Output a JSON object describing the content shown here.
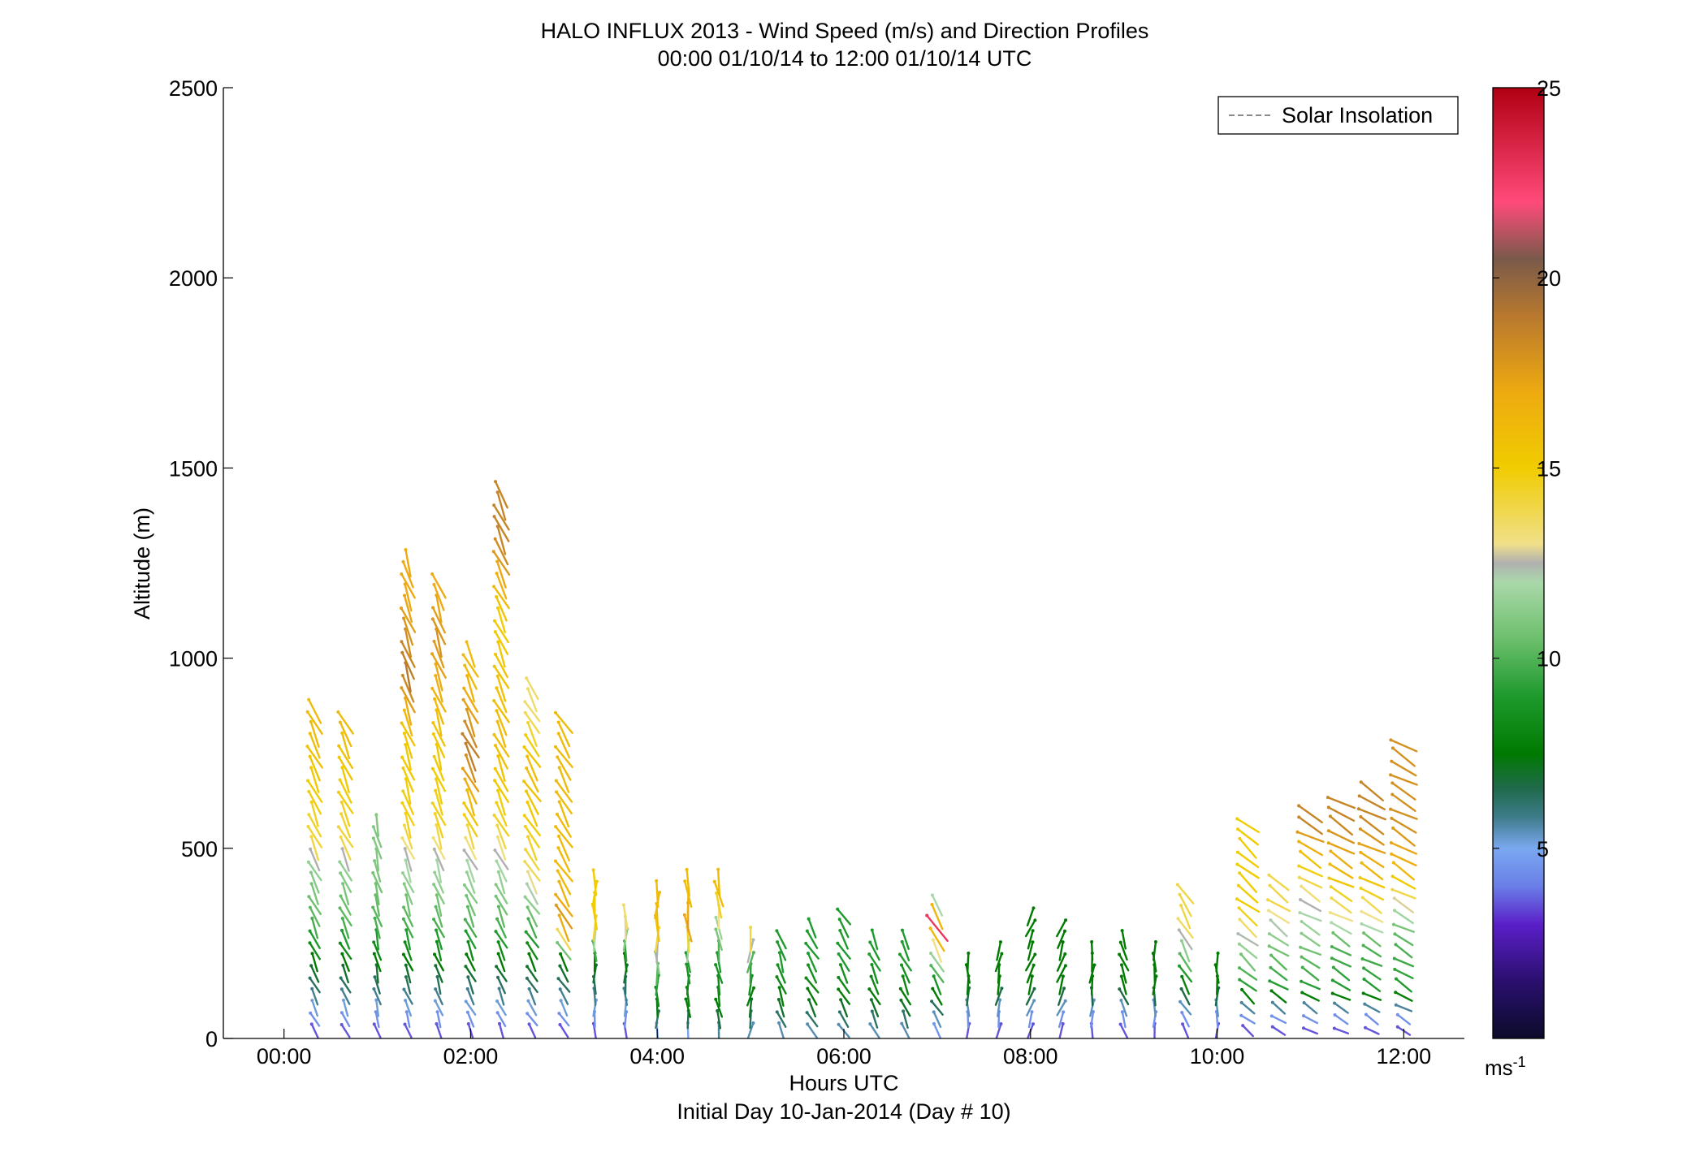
{
  "chart_data": {
    "type": "wind-barb-profile",
    "title": "HALO INFLUX 2013 - Wind Speed (m/s) and Direction Profiles",
    "subtitle": "00:00 01/10/14 to 12:00 01/10/14  UTC",
    "xlabel": "Hours UTC",
    "xlabel2": "Initial Day 10-Jan-2014 (Day # 10)",
    "ylabel": "Altitude (m)",
    "x_range_hours": [
      -0.65,
      12.65
    ],
    "ylim": [
      0,
      2500
    ],
    "x_ticks": [
      {
        "hour": 0,
        "label": "00:00"
      },
      {
        "hour": 2,
        "label": "02:00"
      },
      {
        "hour": 4,
        "label": "04:00"
      },
      {
        "hour": 6,
        "label": "06:00"
      },
      {
        "hour": 8,
        "label": "08:00"
      },
      {
        "hour": 10,
        "label": "10:00"
      },
      {
        "hour": 12,
        "label": "12:00"
      }
    ],
    "y_ticks": [
      0,
      500,
      1000,
      1500,
      2000,
      2500
    ],
    "legend": {
      "position": "top-right",
      "entries": [
        {
          "label": "Solar Insolation",
          "style": "dashed",
          "color": "#8a8a8a"
        }
      ]
    },
    "colorbar": {
      "min": 0,
      "max": 25,
      "ticks": [
        5,
        10,
        15,
        20,
        25
      ],
      "unit": "ms",
      "unit_exp": "-1",
      "stops": [
        {
          "v": 0,
          "c": "#0b0b2a"
        },
        {
          "v": 1.5,
          "c": "#2a0f6e"
        },
        {
          "v": 3,
          "c": "#5a1fc8"
        },
        {
          "v": 4,
          "c": "#6a7ee8"
        },
        {
          "v": 5,
          "c": "#7aa8f0"
        },
        {
          "v": 5.8,
          "c": "#3f7c8c"
        },
        {
          "v": 6.6,
          "c": "#1f6a4a"
        },
        {
          "v": 7.5,
          "c": "#007a00"
        },
        {
          "v": 9,
          "c": "#1e9a2e"
        },
        {
          "v": 10.5,
          "c": "#6cbf6c"
        },
        {
          "v": 12,
          "c": "#aad8aa"
        },
        {
          "v": 12.5,
          "c": "#b0b0b0"
        },
        {
          "v": 13,
          "c": "#f0e08a"
        },
        {
          "v": 15,
          "c": "#f0cc00"
        },
        {
          "v": 17,
          "c": "#eeaa10"
        },
        {
          "v": 19,
          "c": "#b8782e"
        },
        {
          "v": 20.5,
          "c": "#7a5a4a"
        },
        {
          "v": 22,
          "c": "#ff4a7a"
        },
        {
          "v": 25,
          "c": "#b00012"
        }
      ]
    },
    "profiles": [
      {
        "t": 0.33,
        "top": 870,
        "dir": 205,
        "sp": [
          [
            0,
            3
          ],
          [
            70,
            5
          ],
          [
            200,
            7.5
          ],
          [
            300,
            10
          ],
          [
            450,
            11.5
          ],
          [
            500,
            14
          ],
          [
            800,
            16
          ]
        ]
      },
      {
        "t": 0.66,
        "top": 840,
        "dir": 205,
        "sp": [
          [
            0,
            3
          ],
          [
            70,
            5
          ],
          [
            200,
            7.5
          ],
          [
            300,
            10
          ],
          [
            450,
            11.5
          ],
          [
            500,
            14
          ],
          [
            800,
            16
          ]
        ]
      },
      {
        "t": 1.0,
        "top": 560,
        "dir": 195,
        "sp": [
          [
            0,
            3
          ],
          [
            70,
            5
          ],
          [
            200,
            7.5
          ],
          [
            300,
            10
          ],
          [
            450,
            11
          ]
        ]
      },
      {
        "t": 1.33,
        "top": 1250,
        "dir": 200,
        "sp": [
          [
            0,
            3
          ],
          [
            70,
            5
          ],
          [
            200,
            7.5
          ],
          [
            300,
            10
          ],
          [
            450,
            12
          ],
          [
            550,
            14.5
          ],
          [
            800,
            15.5
          ],
          [
            950,
            19
          ],
          [
            1150,
            17
          ]
        ]
      },
      {
        "t": 1.66,
        "top": 1210,
        "dir": 200,
        "sp": [
          [
            0,
            3
          ],
          [
            70,
            5
          ],
          [
            200,
            7.5
          ],
          [
            300,
            10
          ],
          [
            450,
            12
          ],
          [
            550,
            14.5
          ],
          [
            800,
            15.5
          ],
          [
            1050,
            18
          ],
          [
            1150,
            17
          ]
        ]
      },
      {
        "t": 2.0,
        "top": 1010,
        "dir": 205,
        "sp": [
          [
            0,
            3
          ],
          [
            70,
            5
          ],
          [
            200,
            7.5
          ],
          [
            300,
            10
          ],
          [
            450,
            12
          ],
          [
            550,
            14.5
          ],
          [
            750,
            19
          ],
          [
            950,
            16
          ]
        ]
      },
      {
        "t": 2.33,
        "top": 1450,
        "dir": 205,
        "sp": [
          [
            0,
            3
          ],
          [
            70,
            5
          ],
          [
            200,
            7.5
          ],
          [
            300,
            10
          ],
          [
            450,
            12
          ],
          [
            550,
            14.5
          ],
          [
            800,
            16
          ],
          [
            1100,
            15
          ],
          [
            1300,
            18.5
          ]
        ]
      },
      {
        "t": 2.66,
        "top": 940,
        "dir": 210,
        "sp": [
          [
            0,
            3
          ],
          [
            70,
            5
          ],
          [
            200,
            7.5
          ],
          [
            300,
            10
          ],
          [
            450,
            14
          ],
          [
            700,
            16
          ],
          [
            850,
            13.5
          ]
        ]
      },
      {
        "t": 3.0,
        "top": 835,
        "dir": 210,
        "sp": [
          [
            0,
            3
          ],
          [
            70,
            5
          ],
          [
            200,
            7.5
          ],
          [
            300,
            18
          ],
          [
            400,
            16
          ],
          [
            700,
            16
          ]
        ]
      },
      {
        "t": 3.33,
        "top": 430,
        "dir": 180,
        "sp": [
          [
            0,
            3
          ],
          [
            70,
            5
          ],
          [
            200,
            7.5
          ],
          [
            300,
            15
          ]
        ]
      },
      {
        "t": 3.66,
        "top": 340,
        "dir": 180,
        "sp": [
          [
            0,
            3
          ],
          [
            70,
            5
          ],
          [
            200,
            7.5
          ],
          [
            300,
            13.5
          ]
        ]
      },
      {
        "t": 4.0,
        "top": 400,
        "dir": 180,
        "sp": [
          [
            0,
            4
          ],
          [
            70,
            7
          ],
          [
            200,
            11
          ],
          [
            300,
            16
          ]
        ]
      },
      {
        "t": 4.33,
        "top": 430,
        "dir": 185,
        "sp": [
          [
            0,
            4
          ],
          [
            70,
            7.5
          ],
          [
            200,
            9
          ],
          [
            300,
            18
          ],
          [
            380,
            16
          ]
        ]
      },
      {
        "t": 4.66,
        "top": 430,
        "dir": 190,
        "sp": [
          [
            0,
            5
          ],
          [
            70,
            7.5
          ],
          [
            200,
            9
          ],
          [
            300,
            12
          ],
          [
            380,
            16
          ]
        ]
      },
      {
        "t": 5.0,
        "top": 280,
        "dir": 170,
        "sp": [
          [
            0,
            5
          ],
          [
            100,
            7.5
          ],
          [
            200,
            10
          ],
          [
            250,
            14
          ]
        ]
      },
      {
        "t": 5.33,
        "top": 280,
        "dir": 200,
        "sp": [
          [
            0,
            5
          ],
          [
            100,
            7.5
          ],
          [
            200,
            9
          ]
        ]
      },
      {
        "t": 5.66,
        "top": 310,
        "dir": 210,
        "sp": [
          [
            0,
            5
          ],
          [
            100,
            7.5
          ],
          [
            200,
            9
          ]
        ]
      },
      {
        "t": 6.0,
        "top": 340,
        "dir": 210,
        "sp": [
          [
            0,
            5
          ],
          [
            100,
            7.5
          ],
          [
            200,
            9
          ]
        ]
      },
      {
        "t": 6.33,
        "top": 280,
        "dir": 205,
        "sp": [
          [
            0,
            5
          ],
          [
            100,
            7.5
          ],
          [
            200,
            9
          ]
        ]
      },
      {
        "t": 6.66,
        "top": 280,
        "dir": 205,
        "sp": [
          [
            0,
            5
          ],
          [
            100,
            7.5
          ],
          [
            200,
            9
          ]
        ]
      },
      {
        "t": 7.0,
        "top": 360,
        "dir": 210,
        "sp": [
          [
            0,
            4
          ],
          [
            70,
            6
          ],
          [
            150,
            9
          ],
          [
            250,
            14
          ],
          [
            300,
            25
          ],
          [
            330,
            12
          ]
        ]
      },
      {
        "t": 7.33,
        "top": 200,
        "dir": 180,
        "sp": [
          [
            0,
            3
          ],
          [
            70,
            5
          ],
          [
            130,
            7.5
          ]
        ]
      },
      {
        "t": 7.66,
        "top": 230,
        "dir": 170,
        "sp": [
          [
            0,
            3
          ],
          [
            70,
            5
          ],
          [
            130,
            7.5
          ]
        ]
      },
      {
        "t": 8.0,
        "top": 340,
        "dir": 160,
        "sp": [
          [
            0,
            3
          ],
          [
            70,
            5
          ],
          [
            130,
            7.5
          ]
        ]
      },
      {
        "t": 8.33,
        "top": 310,
        "dir": 160,
        "sp": [
          [
            0,
            3
          ],
          [
            70,
            5
          ],
          [
            130,
            7.5
          ]
        ]
      },
      {
        "t": 8.66,
        "top": 230,
        "dir": 175,
        "sp": [
          [
            0,
            3
          ],
          [
            70,
            5
          ],
          [
            130,
            7.5
          ]
        ]
      },
      {
        "t": 9.0,
        "top": 280,
        "dir": 200,
        "sp": [
          [
            0,
            3
          ],
          [
            70,
            5
          ],
          [
            130,
            7.5
          ]
        ]
      },
      {
        "t": 9.33,
        "top": 230,
        "dir": 180,
        "sp": [
          [
            0,
            3
          ],
          [
            70,
            5
          ],
          [
            130,
            7.5
          ]
        ]
      },
      {
        "t": 9.66,
        "top": 400,
        "dir": 210,
        "sp": [
          [
            0,
            3
          ],
          [
            70,
            5
          ],
          [
            130,
            7.5
          ],
          [
            300,
            14
          ]
        ]
      },
      {
        "t": 10.0,
        "top": 200,
        "dir": 180,
        "sp": [
          [
            0,
            3
          ],
          [
            70,
            5
          ],
          [
            130,
            7.5
          ]
        ]
      },
      {
        "t": 10.33,
        "top": 560,
        "dir": 230,
        "sp": [
          [
            0,
            3
          ],
          [
            70,
            5
          ],
          [
            130,
            9
          ],
          [
            250,
            12
          ],
          [
            330,
            15
          ]
        ]
      },
      {
        "t": 10.66,
        "top": 430,
        "dir": 235,
        "sp": [
          [
            0,
            3
          ],
          [
            70,
            5
          ],
          [
            130,
            9
          ],
          [
            250,
            11
          ],
          [
            350,
            14
          ]
        ]
      },
      {
        "t": 11.0,
        "top": 600,
        "dir": 240,
        "sp": [
          [
            0,
            3
          ],
          [
            70,
            5
          ],
          [
            130,
            9
          ],
          [
            250,
            11
          ],
          [
            350,
            12.5
          ],
          [
            450,
            15
          ],
          [
            560,
            18.5
          ]
        ]
      },
      {
        "t": 11.33,
        "top": 630,
        "dir": 240,
        "sp": [
          [
            0,
            3
          ],
          [
            70,
            5
          ],
          [
            130,
            9
          ],
          [
            250,
            10
          ],
          [
            300,
            12.5
          ],
          [
            450,
            16.5
          ],
          [
            570,
            18.5
          ]
        ]
      },
      {
        "t": 11.66,
        "top": 660,
        "dir": 240,
        "sp": [
          [
            0,
            3
          ],
          [
            70,
            5
          ],
          [
            130,
            9
          ],
          [
            250,
            10
          ],
          [
            300,
            12.5
          ],
          [
            450,
            16.5
          ],
          [
            570,
            18.5
          ]
        ]
      },
      {
        "t": 12.0,
        "top": 770,
        "dir": 240,
        "sp": [
          [
            0,
            3
          ],
          [
            70,
            5
          ],
          [
            130,
            9
          ],
          [
            250,
            10
          ],
          [
            300,
            11
          ],
          [
            450,
            16.5
          ],
          [
            560,
            18
          ]
        ]
      }
    ]
  }
}
